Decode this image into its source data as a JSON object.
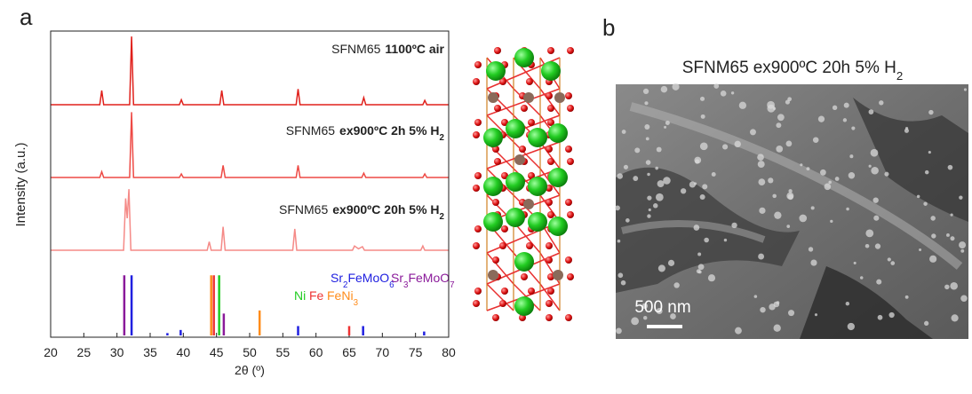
{
  "chart_data": {
    "type": "xrd",
    "x_label": "2θ (º)",
    "y_label": "Intensity (a.u.)",
    "xlim": [
      20,
      80
    ],
    "xticks": [
      20,
      25,
      30,
      35,
      40,
      45,
      50,
      55,
      60,
      65,
      70,
      75,
      80
    ],
    "series": [
      {
        "label_parts": [
          "SFNM65",
          "1100ºC air"
        ],
        "color": "#e0201b",
        "x": [
          20,
          27.4,
          27.7,
          28.0,
          31.9,
          32.2,
          32.5,
          39.4,
          39.7,
          40.0,
          45.5,
          45.8,
          46.1,
          57.0,
          57.3,
          57.6,
          66.9,
          67.2,
          67.5,
          76.1,
          76.4,
          76.7,
          80
        ],
        "values": [
          0,
          0,
          20,
          0,
          0,
          96,
          0,
          0,
          7,
          0,
          0,
          20,
          0,
          0,
          22,
          0,
          0,
          10,
          0,
          0,
          6,
          0,
          0
        ]
      },
      {
        "label_parts": [
          "SFNM65",
          "ex900ºC 2h 5% H",
          "2"
        ],
        "color": "#ee4a45",
        "x": [
          20,
          27.4,
          27.7,
          28.0,
          31.9,
          32.2,
          32.5,
          39.4,
          39.7,
          40.0,
          45.7,
          46.0,
          46.3,
          57.0,
          57.3,
          57.6,
          66.9,
          67.2,
          67.5,
          76.1,
          76.4,
          76.7,
          80
        ],
        "values": [
          0,
          0,
          8,
          0,
          0,
          92,
          0,
          0,
          5,
          0,
          0,
          17,
          0,
          0,
          17,
          0,
          0,
          6,
          0,
          0,
          5,
          0,
          0
        ]
      },
      {
        "label_parts": [
          "SFNM65",
          "ex900ºC 20h 5% H",
          "2"
        ],
        "color": "#f58a87",
        "x": [
          20,
          31.0,
          31.3,
          31.55,
          31.8,
          32.1,
          43.6,
          43.9,
          44.2,
          45.7,
          46.0,
          46.3,
          56.5,
          56.8,
          57.1,
          65.5,
          65.8,
          66.4,
          67.0,
          67.3,
          75.8,
          76.1,
          76.4,
          80
        ],
        "values": [
          0,
          0,
          73,
          45,
          86,
          0,
          0,
          12,
          0,
          0,
          33,
          0,
          0,
          30,
          0,
          0,
          6,
          2,
          5,
          0,
          0,
          6,
          0,
          0
        ]
      }
    ],
    "references": [
      {
        "name_parts": [
          "Sr",
          "2",
          "FeMoO",
          "6"
        ],
        "color": "#2020e0",
        "positions": [
          32.2,
          37.6,
          39.6,
          57.3,
          67.1,
          76.3
        ],
        "heights": [
          77,
          3,
          7,
          12,
          12,
          5
        ]
      },
      {
        "name_parts": [
          "Sr",
          "3",
          "FeMoO",
          "7"
        ],
        "color": "#8a1a9a",
        "positions": [
          31.1,
          46.1
        ],
        "heights": [
          77,
          28
        ]
      },
      {
        "name_parts": [
          "Ni"
        ],
        "color": "#22cc22",
        "positions": [
          45.4
        ],
        "heights": [
          77
        ]
      },
      {
        "name_parts": [
          "Fe"
        ],
        "color": "#ee3333",
        "positions": [
          44.6,
          65.0
        ],
        "heights": [
          77,
          12
        ]
      },
      {
        "name_parts": [
          "FeNi",
          "3"
        ],
        "color": "#ff8c1a",
        "positions": [
          44.2,
          51.5
        ],
        "heights": [
          77,
          32
        ]
      }
    ]
  },
  "figure": {
    "panel_a": "a",
    "panel_b": "b",
    "sem_title_parts": [
      "SFNM65",
      "ex900ºC 20h 5% H",
      "2"
    ],
    "scale_bar": "500 nm"
  }
}
